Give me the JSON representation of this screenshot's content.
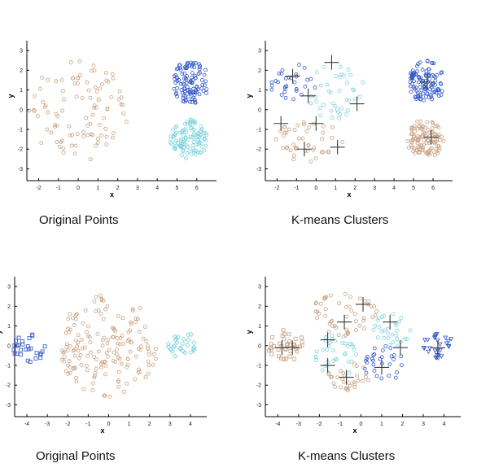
{
  "colors": {
    "brown": "#c8a080",
    "cyan": "#7fd3dc",
    "blue": "#2f55c8",
    "cross": "#3a3a3a",
    "axis": "#000000",
    "tick_text": "#222222"
  },
  "captions": {
    "top_left": "Original Points",
    "top_right": "K-means Clusters",
    "bottom_left": "Original Points",
    "bottom_right": "K-means Clusters"
  },
  "chart_data": [
    {
      "type": "scatter",
      "id": "top-left",
      "title": "Original Points",
      "xlabel": "x",
      "ylabel": "y",
      "xlim": [
        -2.6,
        7
      ],
      "ylim": [
        -3.6,
        3.5
      ],
      "xticks": [
        -2,
        -1,
        0,
        1,
        2,
        3,
        4,
        5,
        6
      ],
      "yticks": [
        -3,
        -2,
        -1,
        0,
        1,
        2,
        3
      ],
      "clusters": [
        {
          "color": "brown",
          "marker": "circle",
          "center": [
            0,
            0
          ],
          "rx": 2.6,
          "ry": 2.6,
          "count": 100,
          "seed": 11
        },
        {
          "color": "blue",
          "marker": "circle",
          "center": [
            5.7,
            1.4
          ],
          "rx": 0.95,
          "ry": 1.1,
          "count": 110,
          "seed": 12
        },
        {
          "color": "cyan",
          "marker": "circle",
          "center": [
            5.6,
            -1.5
          ],
          "rx": 0.95,
          "ry": 1.0,
          "count": 110,
          "seed": 13
        }
      ],
      "centroids": []
    },
    {
      "type": "scatter",
      "id": "top-right",
      "title": "K-means Clusters",
      "xlabel": "x",
      "ylabel": "y",
      "xlim": [
        -2.6,
        7
      ],
      "ylim": [
        -3.6,
        3.5
      ],
      "xticks": [
        -2,
        -1,
        0,
        1,
        2,
        3,
        4,
        5,
        6
      ],
      "yticks": [
        -3,
        -2,
        -1,
        0,
        1,
        2,
        3
      ],
      "clusters": [
        {
          "color": "brown",
          "marker": "circle",
          "center": [
            -0.3,
            -1.6
          ],
          "rx": 1.8,
          "ry": 1.1,
          "count": 45,
          "seed": 21
        },
        {
          "color": "blue",
          "marker": "circle",
          "center": [
            -1.2,
            1.4
          ],
          "rx": 1.2,
          "ry": 1.0,
          "count": 30,
          "seed": 22
        },
        {
          "color": "cyan",
          "marker": "circle",
          "center": [
            1.0,
            1.0
          ],
          "rx": 1.6,
          "ry": 1.5,
          "count": 40,
          "seed": 23
        },
        {
          "color": "blue",
          "marker": "circle",
          "center": [
            5.7,
            1.4
          ],
          "rx": 0.95,
          "ry": 1.1,
          "count": 110,
          "seed": 24
        },
        {
          "color": "brown",
          "marker": "circle",
          "center": [
            5.6,
            -1.5
          ],
          "rx": 0.95,
          "ry": 1.0,
          "count": 110,
          "seed": 25
        }
      ],
      "centroids": [
        [
          -1.8,
          -0.7
        ],
        [
          -1.2,
          1.7
        ],
        [
          -0.4,
          0.7
        ],
        [
          0.8,
          2.4
        ],
        [
          2.1,
          0.3
        ],
        [
          0.0,
          -0.7
        ],
        [
          -0.6,
          -2.0
        ],
        [
          1.1,
          -1.9
        ],
        [
          5.7,
          1.4
        ],
        [
          5.9,
          -1.4
        ]
      ]
    },
    {
      "type": "scatter",
      "id": "bottom-left",
      "title": "Original Points",
      "xlabel": "x",
      "ylabel": "y",
      "xlim": [
        -4.6,
        4.8
      ],
      "ylim": [
        -3.6,
        3.5
      ],
      "xticks": [
        -4,
        -3,
        -2,
        -1,
        0,
        1,
        2,
        3,
        4
      ],
      "yticks": [
        -3,
        -2,
        -1,
        0,
        1,
        2,
        3
      ],
      "clusters": [
        {
          "color": "blue",
          "marker": "square",
          "center": [
            -3.9,
            -0.1
          ],
          "rx": 0.8,
          "ry": 0.75,
          "count": 28,
          "seed": 31
        },
        {
          "color": "brown",
          "marker": "circle",
          "center": [
            0.0,
            0.0
          ],
          "rx": 2.4,
          "ry": 2.6,
          "count": 170,
          "seed": 32
        },
        {
          "color": "cyan",
          "marker": "diamond",
          "center": [
            3.6,
            0.1
          ],
          "rx": 0.7,
          "ry": 0.75,
          "count": 28,
          "seed": 33
        }
      ],
      "centroids": []
    },
    {
      "type": "scatter",
      "id": "bottom-right",
      "title": "K-means Clusters",
      "xlabel": "x",
      "ylabel": "y",
      "xlim": [
        -4.6,
        4.8
      ],
      "ylim": [
        -3.6,
        3.5
      ],
      "xticks": [
        -4,
        -3,
        -2,
        -1,
        0,
        1,
        2,
        3,
        4
      ],
      "yticks": [
        -3,
        -2,
        -1,
        0,
        1,
        2,
        3
      ],
      "clusters": [
        {
          "color": "brown",
          "marker": "square",
          "center": [
            -3.6,
            0.0
          ],
          "rx": 0.9,
          "ry": 0.8,
          "count": 38,
          "seed": 41
        },
        {
          "color": "brown",
          "marker": "circle",
          "center": [
            -0.8,
            1.6
          ],
          "rx": 1.6,
          "ry": 1.1,
          "count": 50,
          "seed": 42
        },
        {
          "color": "cyan",
          "marker": "circle",
          "center": [
            -1.2,
            -0.6
          ],
          "rx": 1.0,
          "ry": 1.2,
          "count": 35,
          "seed": 43
        },
        {
          "color": "blue",
          "marker": "circle",
          "center": [
            1.1,
            -0.9
          ],
          "rx": 1.0,
          "ry": 1.0,
          "count": 30,
          "seed": 44
        },
        {
          "color": "cyan",
          "marker": "circle",
          "center": [
            1.5,
            0.8
          ],
          "rx": 0.9,
          "ry": 0.9,
          "count": 30,
          "seed": 45
        },
        {
          "color": "brown",
          "marker": "circle",
          "center": [
            -0.6,
            -1.6
          ],
          "rx": 1.0,
          "ry": 0.8,
          "count": 30,
          "seed": 46
        },
        {
          "color": "blue",
          "marker": "triangle",
          "center": [
            3.8,
            0.0
          ],
          "rx": 0.8,
          "ry": 0.7,
          "count": 28,
          "seed": 47
        }
      ],
      "centroids": [
        [
          -3.8,
          -0.1
        ],
        [
          -3.3,
          -0.1
        ],
        [
          -1.6,
          0.3
        ],
        [
          -1.6,
          -1.0
        ],
        [
          -0.7,
          -1.6
        ],
        [
          -0.8,
          1.2
        ],
        [
          0.1,
          2.1
        ],
        [
          1.4,
          1.2
        ],
        [
          1.9,
          -0.1
        ],
        [
          1.0,
          -1.1
        ],
        [
          3.7,
          -0.1
        ]
      ]
    }
  ]
}
